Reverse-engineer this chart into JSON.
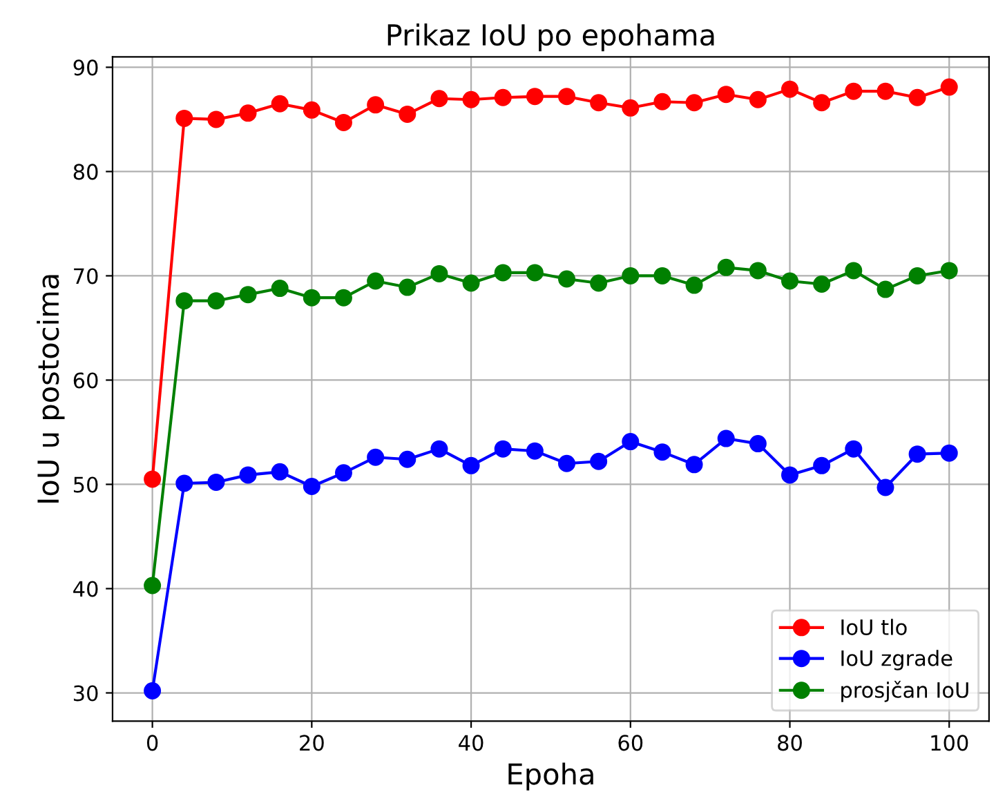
{
  "chart_data": {
    "type": "line",
    "title": "Prikaz IoU po epohama",
    "xlabel": "Epoha",
    "ylabel": "IoU u postocima",
    "x": [
      0,
      4,
      8,
      12,
      16,
      20,
      24,
      28,
      32,
      36,
      40,
      44,
      48,
      52,
      56,
      60,
      64,
      68,
      72,
      76,
      80,
      84,
      88,
      92,
      96,
      100
    ],
    "series": [
      {
        "name": "IoU tlo",
        "color": "#ff0000",
        "values": [
          50.5,
          85.1,
          85.0,
          85.6,
          86.5,
          85.9,
          84.7,
          86.4,
          85.5,
          87.0,
          86.9,
          87.1,
          87.2,
          87.2,
          86.6,
          86.1,
          86.7,
          86.6,
          87.4,
          86.9,
          87.9,
          86.6,
          87.7,
          87.7,
          87.1,
          88.1
        ]
      },
      {
        "name": "IoU zgrade",
        "color": "#0000ff",
        "values": [
          30.2,
          50.1,
          50.2,
          50.9,
          51.2,
          49.8,
          51.1,
          52.6,
          52.4,
          53.4,
          51.8,
          53.4,
          53.2,
          52.0,
          52.2,
          54.1,
          53.1,
          51.9,
          54.4,
          53.9,
          50.9,
          51.8,
          53.4,
          49.7,
          52.9,
          53.0
        ]
      },
      {
        "name": "prosjčan IoU",
        "color": "#008000",
        "values": [
          40.3,
          67.6,
          67.6,
          68.2,
          68.8,
          67.9,
          67.9,
          69.5,
          68.9,
          70.2,
          69.3,
          70.3,
          70.3,
          69.7,
          69.3,
          70.0,
          70.0,
          69.1,
          70.8,
          70.5,
          69.5,
          69.2,
          70.5,
          68.7,
          70.0,
          70.5
        ]
      }
    ],
    "xlim": [
      -5,
      105
    ],
    "ylim": [
      27.3,
      91
    ],
    "xticks": [
      0,
      20,
      40,
      60,
      80,
      100
    ],
    "yticks": [
      30,
      40,
      50,
      60,
      70,
      80,
      90
    ],
    "grid": true,
    "legend": "bottom right",
    "marker": "circle",
    "line_style": "solid"
  }
}
